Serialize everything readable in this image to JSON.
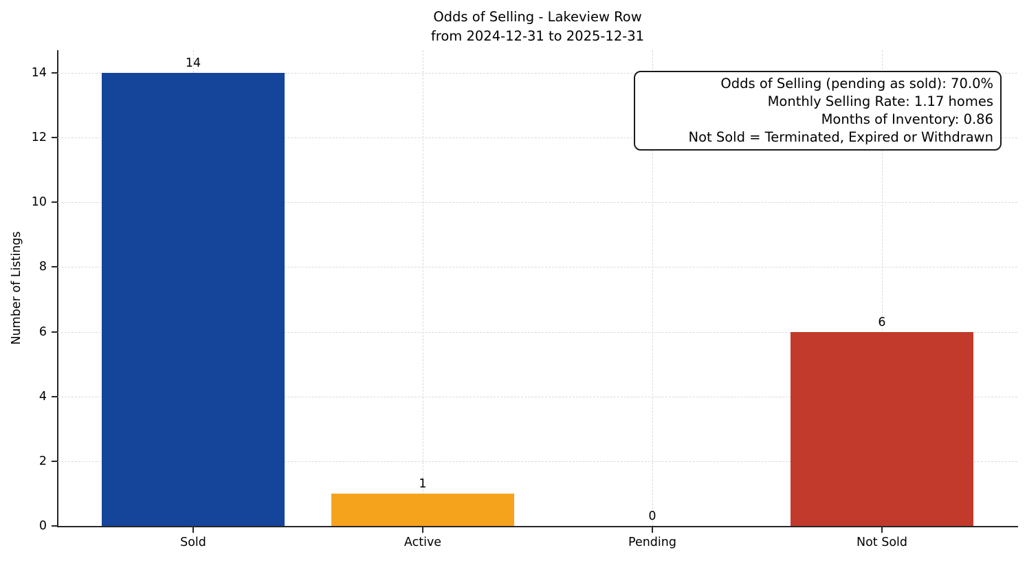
{
  "figure": {
    "title_line1": "Odds of Selling - Lakeview Row",
    "title_line2": "from 2024-12-31 to 2025-12-31",
    "ylabel": "Number of Listings"
  },
  "annotation": {
    "lines": [
      "Odds of Selling (pending as sold): 70.0%",
      "Monthly Selling Rate: 1.17 homes",
      "Months of Inventory: 0.86",
      "Not Sold = Terminated, Expired or Withdrawn"
    ]
  },
  "chart_data": {
    "type": "bar",
    "title": "Odds of Selling - Lakeview Row",
    "subtitle": "from 2024-12-31 to 2025-12-31",
    "categories": [
      "Sold",
      "Active",
      "Pending",
      "Not Sold"
    ],
    "values": [
      14,
      1,
      0,
      6
    ],
    "value_labels": [
      "14",
      "1",
      "0",
      "6"
    ],
    "bar_colors": [
      "#14459B",
      "#F5A31C",
      null,
      "#C23A2B"
    ],
    "xlabel": "",
    "ylabel": "Number of Listings",
    "ylim": [
      0,
      14.7
    ],
    "yticks": [
      0,
      2,
      4,
      6,
      8,
      10,
      12,
      14
    ],
    "grid": true,
    "grid_style": "dashed",
    "legend_position": "none",
    "colors": {
      "axis": "#262626",
      "grid": "#d9d9d9",
      "background": "#ffffff"
    }
  }
}
